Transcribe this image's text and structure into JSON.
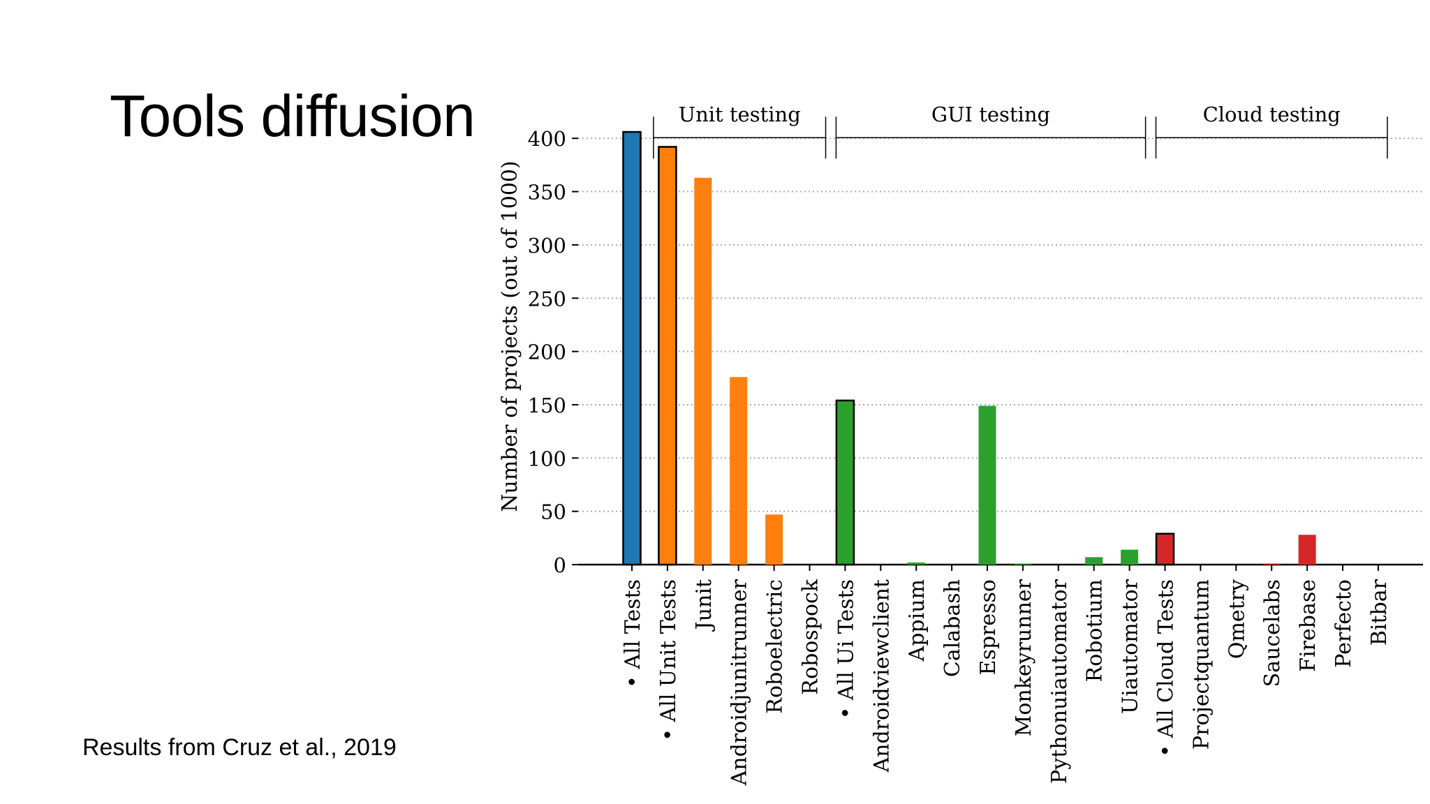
{
  "slide": {
    "title": "Tools diffusion",
    "citation": "Results from Cruz et al., 2019"
  },
  "chart_data": {
    "type": "bar",
    "ylabel": "Number of projects (out of 1000)",
    "xlabel": "",
    "ylim": [
      0,
      400
    ],
    "yticks": [
      0,
      50,
      100,
      150,
      200,
      250,
      300,
      350,
      400
    ],
    "grid": "horizontal dotted",
    "categories": [
      "• All Tests",
      "• All Unit Tests",
      "Junit",
      "Androidjunitrunner",
      "Roboelectric",
      "Robospock",
      "• All Ui Tests",
      "Androidviewclient",
      "Appium",
      "Calabash",
      "Espresso",
      "Monkeyrunner",
      "Pythonuiautomator",
      "Robotium",
      "Uiautomator",
      "• All Cloud Tests",
      "Projectquantum",
      "Qmetry",
      "Saucelabs",
      "Firebase",
      "Perfecto",
      "Bitbar"
    ],
    "values": [
      406,
      392,
      363,
      176,
      47,
      0,
      154,
      0,
      2,
      0,
      149,
      1,
      0,
      7,
      14,
      29,
      0,
      0,
      1,
      28,
      0,
      0
    ],
    "bar_colors": [
      "#1f77b4",
      "#ff7f0e",
      "#ff7f0e",
      "#ff7f0e",
      "#ff7f0e",
      "#ff7f0e",
      "#2ca02c",
      "#2ca02c",
      "#2ca02c",
      "#2ca02c",
      "#2ca02c",
      "#2ca02c",
      "#2ca02c",
      "#2ca02c",
      "#2ca02c",
      "#d62728",
      "#d62728",
      "#d62728",
      "#d62728",
      "#d62728",
      "#d62728",
      "#d62728"
    ],
    "outlined_bars": [
      "• All Tests",
      "• All Unit Tests",
      "• All Ui Tests",
      "• All Cloud Tests"
    ],
    "groups": [
      {
        "label": "Unit testing",
        "from": "• All Unit Tests",
        "to": "Robospock"
      },
      {
        "label": "GUI testing",
        "from": "• All Ui Tests",
        "to": "Uiautomator"
      },
      {
        "label": "Cloud testing",
        "from": "• All Cloud Tests",
        "to": "Bitbar"
      }
    ]
  }
}
